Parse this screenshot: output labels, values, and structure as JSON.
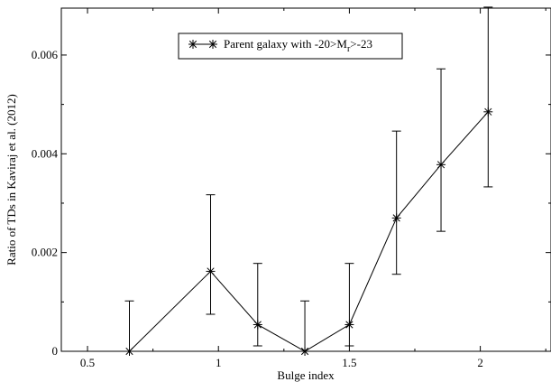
{
  "chart_data": {
    "type": "line",
    "xlabel": "Bulge index",
    "ylabel": "Ratio of TDs in Kaviraj et al. (2012)",
    "xlim": [
      0.4,
      2.27
    ],
    "ylim": [
      0,
      0.00695
    ],
    "x_ticks": [
      0.5,
      1,
      1.5,
      2
    ],
    "x_tick_labels": [
      "0.5",
      "1",
      "1.5",
      "2"
    ],
    "y_ticks": [
      0,
      0.002,
      0.004,
      0.006
    ],
    "y_tick_labels": [
      "0",
      "0.002",
      "0.004",
      "0.006"
    ],
    "grid": false,
    "legend_position": "top-center",
    "marker": "asterisk",
    "series": [
      {
        "name": "Parent galaxy with -20>Mr>-23",
        "x": [
          0.66,
          0.97,
          1.15,
          1.33,
          1.5,
          1.68,
          1.85,
          2.03
        ],
        "y": [
          0.0,
          0.00162,
          0.00054,
          0.0,
          0.00054,
          0.0027,
          0.00378,
          0.00485
        ],
        "y_low": [
          0.0,
          0.00075,
          0.00011,
          0.0,
          0.00011,
          0.00156,
          0.00243,
          0.00333
        ],
        "y_high": [
          0.00102,
          0.00317,
          0.00178,
          0.00102,
          0.00178,
          0.00446,
          0.00572,
          0.00697
        ]
      }
    ],
    "legend": {
      "prefix": "Parent galaxy with -20>M",
      "subscript": "r",
      "suffix": ">-23"
    }
  }
}
